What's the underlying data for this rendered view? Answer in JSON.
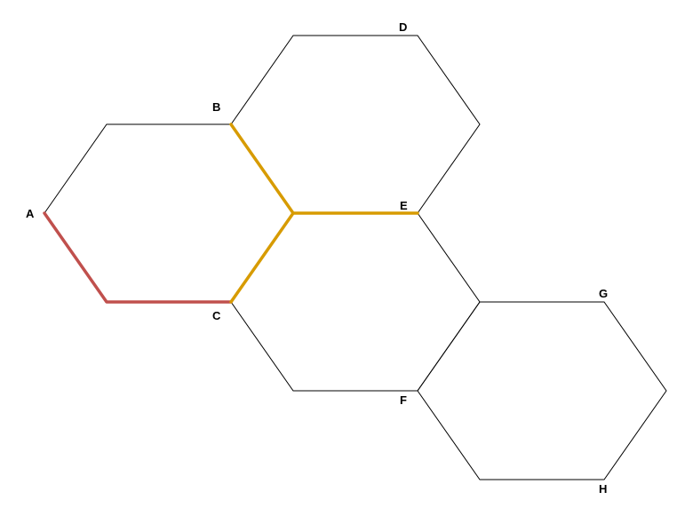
{
  "diagram": {
    "labels": {
      "A": "A",
      "B": "B",
      "C": "C",
      "D": "D",
      "E": "E",
      "F": "F",
      "G": "G",
      "H": "H"
    },
    "highlighted_paths": [
      {
        "id": "red-path",
        "nodes": [
          "A",
          "C"
        ],
        "color": "#c0504d"
      },
      {
        "id": "gold-path",
        "nodes": [
          "B",
          "E",
          "C"
        ],
        "color": "#d79b00"
      }
    ],
    "edge_color": "#000000"
  }
}
